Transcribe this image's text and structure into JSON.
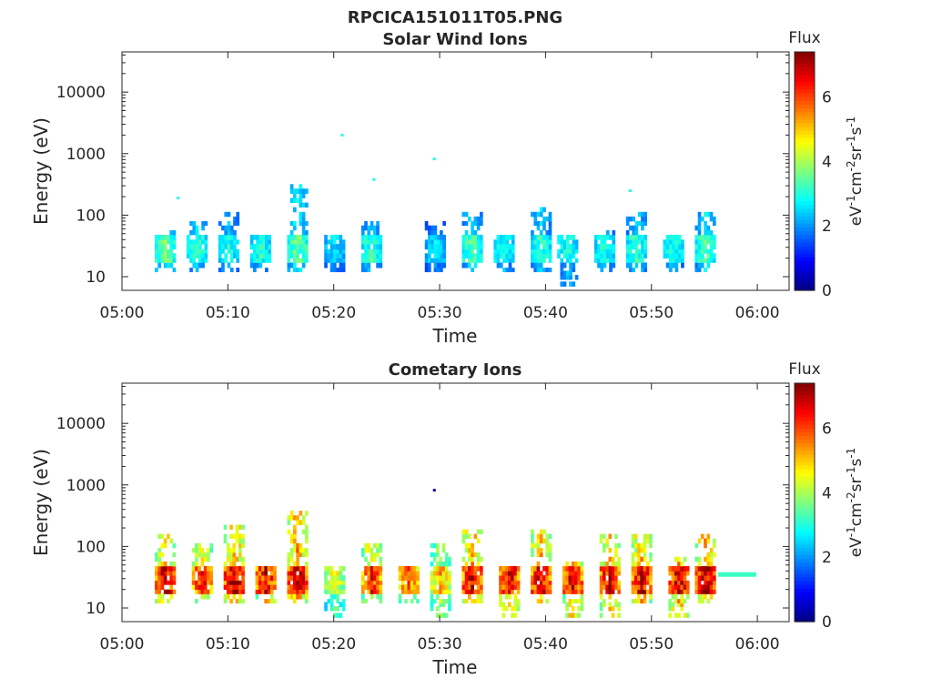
{
  "figure": {
    "title": "RPCICA151011T05.PNG"
  },
  "colormap": [
    "#00007f",
    "#0000ff",
    "#007fff",
    "#00ffff",
    "#7fff7f",
    "#ffff00",
    "#ff7f00",
    "#ff0000",
    "#7f0000"
  ],
  "chart_data": [
    {
      "type": "heatmap",
      "title": "Solar Wind Ions",
      "xlabel": "Time",
      "ylabel": "Energy (eV)",
      "x_unit": "time (hh:mm)",
      "xlim": [
        "05:00",
        "06:03"
      ],
      "xticks": [
        "05:00",
        "05:10",
        "05:20",
        "05:30",
        "05:40",
        "05:50",
        "06:00"
      ],
      "y_scale": "log",
      "ylim": [
        6,
        45000
      ],
      "yticks": [
        10,
        100,
        1000,
        10000
      ],
      "ytick_labels": [
        "10",
        "100",
        "1000",
        "10000"
      ],
      "colorbar": {
        "label": "Flux",
        "unit_label": "eV-1cm-2sr-1s-1",
        "range": [
          0,
          7.4
        ],
        "ticks": [
          0,
          2,
          4,
          6
        ],
        "tick_labels": [
          "0",
          "2",
          "4",
          "6"
        ]
      },
      "series": [
        {
          "time": "05:04",
          "energy_min": 12,
          "energy_max": 55,
          "peak_flux": 3.6
        },
        {
          "time": "05:07",
          "energy_min": 12,
          "energy_max": 75,
          "peak_flux": 3.2
        },
        {
          "time": "05:10",
          "energy_min": 12,
          "energy_max": 95,
          "peak_flux": 3.0
        },
        {
          "time": "05:13",
          "energy_min": 12,
          "energy_max": 45,
          "peak_flux": 3.0
        },
        {
          "time": "05:16.5",
          "energy_min": 12,
          "energy_max": 300,
          "peak_flux": 3.6
        },
        {
          "time": "05:20",
          "energy_min": 12,
          "energy_max": 40,
          "peak_flux": 2.6
        },
        {
          "time": "05:23.5",
          "energy_min": 12,
          "energy_max": 75,
          "peak_flux": 3.2
        },
        {
          "time": "05:29.5",
          "energy_min": 12,
          "energy_max": 75,
          "peak_flux": 2.6
        },
        {
          "time": "05:33",
          "energy_min": 12,
          "energy_max": 95,
          "peak_flux": 3.4
        },
        {
          "time": "05:36",
          "energy_min": 12,
          "energy_max": 45,
          "peak_flux": 3.0
        },
        {
          "time": "05:39.5",
          "energy_min": 12,
          "energy_max": 120,
          "peak_flux": 3.2
        },
        {
          "time": "05:42",
          "energy_min": 6,
          "energy_max": 45,
          "peak_flux": 3.0
        },
        {
          "time": "05:45.5",
          "energy_min": 12,
          "energy_max": 55,
          "peak_flux": 3.0
        },
        {
          "time": "05:48.5",
          "energy_min": 12,
          "energy_max": 95,
          "peak_flux": 3.2
        },
        {
          "time": "05:52",
          "energy_min": 12,
          "energy_max": 45,
          "peak_flux": 3.0
        },
        {
          "time": "05:55",
          "energy_min": 12,
          "energy_max": 110,
          "peak_flux": 3.4
        }
      ],
      "isolated_points": [
        {
          "time": "05:05.3",
          "energy": 190,
          "flux": 3.0
        },
        {
          "time": "05:20.8",
          "energy": 2000,
          "flux": 3.0
        },
        {
          "time": "05:23.8",
          "energy": 380,
          "flux": 2.8
        },
        {
          "time": "05:29.5",
          "energy": 820,
          "flux": 3.0
        },
        {
          "time": "05:48",
          "energy": 250,
          "flux": 3.0
        }
      ]
    },
    {
      "type": "heatmap",
      "title": "Cometary Ions",
      "xlabel": "Time",
      "ylabel": "Energy (eV)",
      "x_unit": "time (hh:mm)",
      "xlim": [
        "05:00",
        "06:03"
      ],
      "xticks": [
        "05:00",
        "05:10",
        "05:20",
        "05:30",
        "05:40",
        "05:50",
        "06:00"
      ],
      "y_scale": "log",
      "ylim": [
        6,
        45000
      ],
      "yticks": [
        10,
        100,
        1000,
        10000
      ],
      "ytick_labels": [
        "10",
        "100",
        "1000",
        "10000"
      ],
      "colorbar": {
        "label": "Flux",
        "unit_label": "eV-1cm-2sr-1s-1",
        "range": [
          0,
          7.4
        ],
        "ticks": [
          0,
          2,
          4,
          6
        ],
        "tick_labels": [
          "0",
          "2",
          "4",
          "6"
        ]
      },
      "series": [
        {
          "time": "05:04",
          "energy_min": 12,
          "energy_max": 140,
          "peak_flux": 6.8
        },
        {
          "time": "05:07.5",
          "energy_min": 12,
          "energy_max": 110,
          "peak_flux": 6.4
        },
        {
          "time": "05:10.5",
          "energy_min": 12,
          "energy_max": 190,
          "peak_flux": 7.0
        },
        {
          "time": "05:13.5",
          "energy_min": 12,
          "energy_max": 45,
          "peak_flux": 6.6
        },
        {
          "time": "05:16.5",
          "energy_min": 12,
          "energy_max": 320,
          "peak_flux": 7.0
        },
        {
          "time": "05:20",
          "energy_min": 6,
          "energy_max": 40,
          "peak_flux": 4.6
        },
        {
          "time": "05:23.5",
          "energy_min": 12,
          "energy_max": 95,
          "peak_flux": 6.2
        },
        {
          "time": "05:27",
          "energy_min": 12,
          "energy_max": 45,
          "peak_flux": 5.8
        },
        {
          "time": "05:30",
          "energy_min": 6,
          "energy_max": 100,
          "peak_flux": 5.2
        },
        {
          "time": "05:33",
          "energy_min": 12,
          "energy_max": 170,
          "peak_flux": 6.8
        },
        {
          "time": "05:36.5",
          "energy_min": 6,
          "energy_max": 45,
          "peak_flux": 6.8
        },
        {
          "time": "05:39.5",
          "energy_min": 12,
          "energy_max": 170,
          "peak_flux": 6.8
        },
        {
          "time": "05:42.5",
          "energy_min": 6,
          "energy_max": 55,
          "peak_flux": 6.6
        },
        {
          "time": "05:46",
          "energy_min": 6,
          "energy_max": 140,
          "peak_flux": 6.8
        },
        {
          "time": "05:49",
          "energy_min": 12,
          "energy_max": 150,
          "peak_flux": 6.8
        },
        {
          "time": "05:52.5",
          "energy_min": 6,
          "energy_max": 60,
          "peak_flux": 6.8
        },
        {
          "time": "05:55",
          "energy_min": 12,
          "energy_max": 150,
          "peak_flux": 7.0
        },
        {
          "time": "05:57.5",
          "energy_min": 35,
          "energy_max": 35,
          "peak_flux": 3.2
        }
      ],
      "isolated_points": [
        {
          "time": "05:29.5",
          "energy": 820,
          "flux": 0.2
        }
      ]
    }
  ]
}
